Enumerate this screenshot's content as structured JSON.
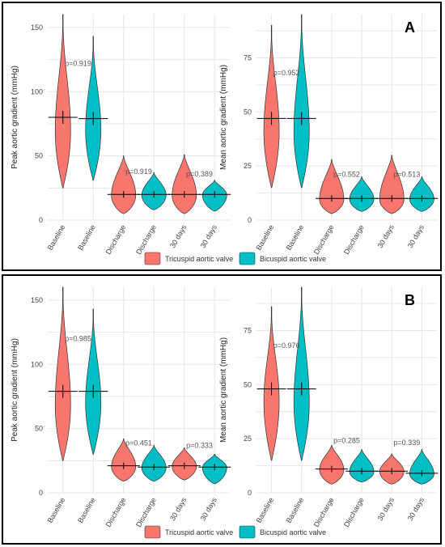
{
  "colors": {
    "tricuspid": "#F8766D",
    "bicuspid": "#00BFC4",
    "outline": "#333333"
  },
  "legend": {
    "tricuspid": "Tricuspid aortic valve",
    "bicuspid": "Bicuspid aortic valve"
  },
  "chart_data": [
    {
      "type": "violin",
      "panel": "A",
      "panel_label": "A",
      "ylabel": "Peak aortic gradient (mmHg)",
      "ylim": [
        0,
        160
      ],
      "yticks": [
        0,
        50,
        100,
        150
      ],
      "categories": [
        "Baseline",
        "Baseline",
        "Discharge",
        "Discharge",
        "30 days",
        "30 days"
      ],
      "groups": [
        "tricuspid",
        "bicuspid",
        "tricuspid",
        "bicuspid",
        "tricuspid",
        "bicuspid"
      ],
      "min": [
        25,
        31,
        5,
        8,
        5,
        7
      ],
      "max": [
        160,
        143,
        50,
        37,
        51,
        31
      ],
      "median": [
        80,
        79,
        20,
        20,
        20,
        20
      ],
      "pvalues": [
        {
          "pair": 0,
          "value": "p=0.919",
          "y": 120
        },
        {
          "pair": 1,
          "value": "p=0.919",
          "y": 36
        },
        {
          "pair": 2,
          "value": "p=0.389",
          "y": 34
        }
      ]
    },
    {
      "type": "violin",
      "panel": "A",
      "panel_label": "",
      "ylabel": "Mean aortic gradient (mmHg)",
      "ylim": [
        0,
        95
      ],
      "yticks": [
        0,
        25,
        50,
        75
      ],
      "categories": [
        "Baseline",
        "Baseline",
        "Discharge",
        "Discharge",
        "30 days",
        "30 days"
      ],
      "groups": [
        "tricuspid",
        "bicuspid",
        "tricuspid",
        "bicuspid",
        "tricuspid",
        "bicuspid"
      ],
      "min": [
        15,
        15,
        3,
        4,
        3,
        4
      ],
      "max": [
        90,
        95,
        28,
        20,
        30,
        20
      ],
      "median": [
        47,
        47,
        10,
        10,
        10,
        10
      ],
      "pvalues": [
        {
          "pair": 0,
          "value": "p=0.952",
          "y": 67
        },
        {
          "pair": 1,
          "value": "p=0.552",
          "y": 20
        },
        {
          "pair": 2,
          "value": "p=0.513",
          "y": 20
        }
      ]
    },
    {
      "type": "violin",
      "panel": "B",
      "panel_label": "B",
      "ylabel": "Peak aortic gradient (mmHg)",
      "ylim": [
        0,
        160
      ],
      "yticks": [
        0,
        50,
        100,
        150
      ],
      "categories": [
        "Baseline",
        "Baseline",
        "Discharge",
        "Discharge",
        "30 days",
        "30 days"
      ],
      "groups": [
        "tricuspid",
        "bicuspid",
        "tricuspid",
        "bicuspid",
        "tricuspid",
        "bicuspid"
      ],
      "min": [
        25,
        30,
        9,
        9,
        10,
        7
      ],
      "max": [
        160,
        143,
        42,
        37,
        35,
        30
      ],
      "median": [
        79,
        79,
        21,
        20,
        21,
        20
      ],
      "pvalues": [
        {
          "pair": 0,
          "value": "p=0.985",
          "y": 118
        },
        {
          "pair": 1,
          "value": "p=0.451",
          "y": 37
        },
        {
          "pair": 2,
          "value": "p=0.333",
          "y": 35
        }
      ]
    },
    {
      "type": "violin",
      "panel": "B",
      "panel_label": "",
      "ylabel": "Mean aortic gradient (mmHg)",
      "ylim": [
        0,
        95
      ],
      "yticks": [
        0,
        25,
        50,
        75
      ],
      "categories": [
        "Baseline",
        "Baseline",
        "Discharge",
        "Discharge",
        "30 days",
        "30 days"
      ],
      "groups": [
        "tricuspid",
        "bicuspid",
        "tricuspid",
        "bicuspid",
        "tricuspid",
        "bicuspid"
      ],
      "min": [
        15,
        15,
        4,
        5,
        4,
        4
      ],
      "max": [
        86,
        95,
        22,
        20,
        18,
        20
      ],
      "median": [
        48,
        48,
        11,
        10,
        10,
        9
      ],
      "pvalues": [
        {
          "pair": 0,
          "value": "p=0.976",
          "y": 67
        },
        {
          "pair": 1,
          "value": "p=0.285",
          "y": 23
        },
        {
          "pair": 2,
          "value": "p=0.339",
          "y": 22
        }
      ]
    }
  ]
}
